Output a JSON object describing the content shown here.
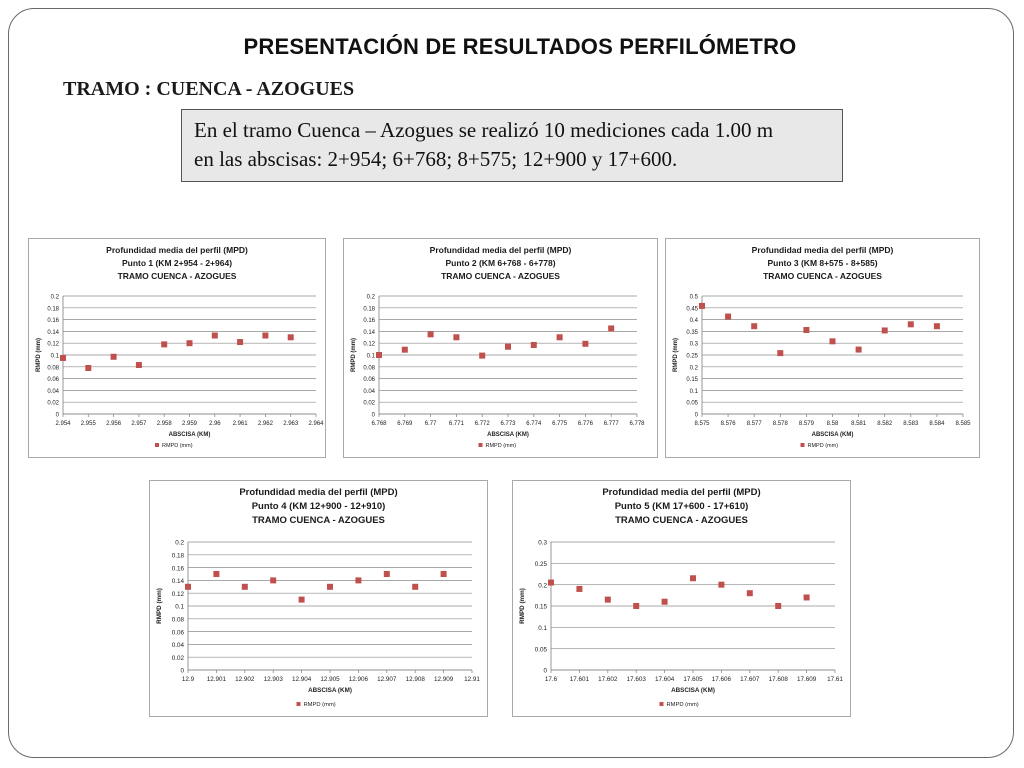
{
  "slide": {
    "title": "PRESENTACIÓN DE RESULTADOS PERFILÓMETRO",
    "subtitle": "TRAMO : CUENCA - AZOGUES",
    "description_line1": "En el tramo Cuenca – Azogues se realizó 10 mediciones cada 1.00 m",
    "description_line2": "en las abscisas: 2+954; 6+768; 8+575; 12+900 y 17+600."
  },
  "colors": {
    "marker": "#c0504d",
    "grid": "#8c8c8c",
    "axis": "#8c8c8c",
    "text": "#222222"
  },
  "chart_data": [
    {
      "type": "scatter",
      "title_lines": [
        "Profundidad media del perfil (MPD)",
        "Punto 1 (KM 2+954 - 2+964)",
        "TRAMO CUENCA - AZOGUES"
      ],
      "xlabel": "ABSCISA (KM)",
      "ylabel": "RMPD (mm)",
      "legend": "RMPD (mm)",
      "legend_position": "bottom",
      "grid": true,
      "xlim": [
        2.954,
        2.964
      ],
      "ylim": [
        0,
        0.2
      ],
      "x_ticks": [
        "2.954",
        "2.955",
        "2.956",
        "2.957",
        "2.958",
        "2.959",
        "2.96",
        "2.961",
        "2.962",
        "2.963",
        "2.964"
      ],
      "y_ticks": [
        "0",
        "0.02",
        "0.04",
        "0.06",
        "0.08",
        "0.1",
        "0.12",
        "0.14",
        "0.16",
        "0.18",
        "0.2"
      ],
      "series": [
        {
          "name": "RMPD (mm)",
          "x": [
            2.954,
            2.955,
            2.956,
            2.957,
            2.958,
            2.959,
            2.96,
            2.961,
            2.962,
            2.963
          ],
          "y": [
            0.095,
            0.078,
            0.097,
            0.083,
            0.118,
            0.12,
            0.133,
            0.122,
            0.133,
            0.13
          ]
        }
      ]
    },
    {
      "type": "scatter",
      "title_lines": [
        "Profundidad media del perfil (MPD)",
        "Punto 2 (KM 6+768 - 6+778)",
        "TRAMO CUENCA - AZOGUES"
      ],
      "xlabel": "ABSCISA (KM)",
      "ylabel": "RMPD (mm)",
      "legend": "RMPD (mm)",
      "legend_position": "bottom",
      "grid": true,
      "xlim": [
        6.768,
        6.778
      ],
      "ylim": [
        0,
        0.2
      ],
      "x_ticks": [
        "6.768",
        "6.769",
        "6.77",
        "6.771",
        "6.772",
        "6.773",
        "6.774",
        "6.775",
        "6.776",
        "6.777",
        "6.778"
      ],
      "y_ticks": [
        "0",
        "0.02",
        "0.04",
        "0.06",
        "0.08",
        "0.1",
        "0.12",
        "0.14",
        "0.16",
        "0.18",
        "0.2"
      ],
      "series": [
        {
          "name": "RMPD (mm)",
          "x": [
            6.768,
            6.769,
            6.77,
            6.771,
            6.772,
            6.773,
            6.774,
            6.775,
            6.776,
            6.777
          ],
          "y": [
            0.1,
            0.109,
            0.135,
            0.13,
            0.099,
            0.114,
            0.117,
            0.13,
            0.119,
            0.145
          ]
        }
      ]
    },
    {
      "type": "scatter",
      "title_lines": [
        "Profundidad media del perfil (MPD)",
        "Punto 3 (KM 8+575 - 8+585)",
        "TRAMO CUENCA - AZOGUES"
      ],
      "xlabel": "ABSCISA (KM)",
      "ylabel": "RMPD (mm)",
      "legend": "RMPD (mm)",
      "legend_position": "bottom",
      "grid": true,
      "xlim": [
        8.575,
        8.585
      ],
      "ylim": [
        0,
        0.5
      ],
      "x_ticks": [
        "8.575",
        "8.576",
        "8.577",
        "8.578",
        "8.579",
        "8.58",
        "8.581",
        "8.582",
        "8.583",
        "8.584",
        "8.585"
      ],
      "y_ticks": [
        "0",
        "0.05",
        "0.1",
        "0.15",
        "0.2",
        "0.25",
        "0.3",
        "0.35",
        "0.4",
        "0.45",
        "0.5"
      ],
      "series": [
        {
          "name": "RMPD (mm)",
          "x": [
            8.575,
            8.576,
            8.577,
            8.578,
            8.579,
            8.58,
            8.581,
            8.582,
            8.583,
            8.584
          ],
          "y": [
            0.458,
            0.413,
            0.372,
            0.258,
            0.356,
            0.308,
            0.273,
            0.354,
            0.38,
            0.372
          ]
        }
      ]
    },
    {
      "type": "scatter",
      "title_lines": [
        "Profundidad media del perfil (MPD)",
        "Punto 4 (KM 12+900 - 12+910)",
        "TRAMO CUENCA - AZOGUES"
      ],
      "xlabel": "ABSCISA (KM)",
      "ylabel": "RMPD (mm)",
      "legend": "RMPD (mm)",
      "legend_position": "bottom",
      "grid": true,
      "xlim": [
        12.9,
        12.91
      ],
      "ylim": [
        0,
        0.2
      ],
      "x_ticks": [
        "12.9",
        "12.901",
        "12.902",
        "12.903",
        "12.904",
        "12.905",
        "12.906",
        "12.907",
        "12.908",
        "12.909",
        "12.91"
      ],
      "y_ticks": [
        "0",
        "0.02",
        "0.04",
        "0.06",
        "0.08",
        "0.1",
        "0.12",
        "0.14",
        "0.16",
        "0.18",
        "0.2"
      ],
      "series": [
        {
          "name": "RMPD (mm)",
          "x": [
            12.9,
            12.901,
            12.902,
            12.903,
            12.904,
            12.905,
            12.906,
            12.907,
            12.908,
            12.909
          ],
          "y": [
            0.13,
            0.15,
            0.13,
            0.14,
            0.11,
            0.13,
            0.14,
            0.15,
            0.13,
            0.15
          ]
        }
      ]
    },
    {
      "type": "scatter",
      "title_lines": [
        "Profundidad media del perfil (MPD)",
        "Punto 5 (KM 17+600 - 17+610)",
        "TRAMO CUENCA - AZOGUES"
      ],
      "xlabel": "ABSCISA (KM)",
      "ylabel": "RMPD (mm)",
      "legend": "RMPD (mm)",
      "legend_position": "bottom",
      "grid": true,
      "xlim": [
        17.6,
        17.61
      ],
      "ylim": [
        0,
        0.3
      ],
      "x_ticks": [
        "17.6",
        "17.601",
        "17.602",
        "17.603",
        "17.604",
        "17.605",
        "17.606",
        "17.607",
        "17.608",
        "17.609",
        "17.61"
      ],
      "y_ticks": [
        "0",
        "0.05",
        "0.1",
        "0.15",
        "0.2",
        "0.25",
        "0.3"
      ],
      "series": [
        {
          "name": "RMPD (mm)",
          "x": [
            17.6,
            17.601,
            17.602,
            17.603,
            17.604,
            17.605,
            17.606,
            17.607,
            17.608,
            17.609
          ],
          "y": [
            0.205,
            0.19,
            0.165,
            0.15,
            0.16,
            0.215,
            0.2,
            0.18,
            0.15,
            0.17
          ]
        }
      ]
    }
  ]
}
